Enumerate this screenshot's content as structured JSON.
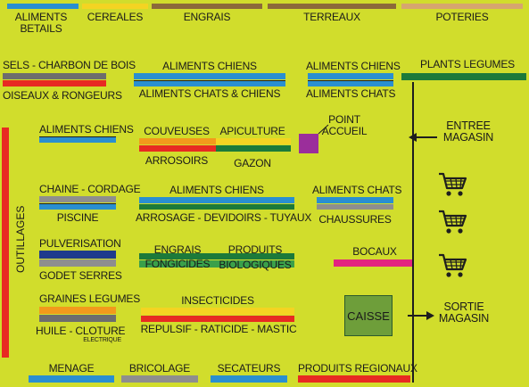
{
  "colors": {
    "background": "#d1dd2c",
    "blue": "#2a8fd0",
    "yellow": "#f4d422",
    "brown": "#8c6a3a",
    "tan": "#d6a66e",
    "grey": "#8e8e8e",
    "dark_grey": "#6d6d6d",
    "green": "#1c7a3a",
    "navy": "#1f3a8c",
    "orange": "#f29a1c",
    "red": "#e82a22",
    "magenta": "#e3237f",
    "purple": "#9b2e9b",
    "caisse_green": "#6e9e3a",
    "walls": "#1e1e1e"
  },
  "top_row": {
    "aliments_betails": "ALIMENTS\nBETAILS",
    "cereales": "CEREALES",
    "engrais": "ENGRAIS",
    "terreaux": "TERREAUX",
    "poteries": "POTERIES"
  },
  "row2": {
    "sels": "SELS - CHARBON DE BOIS",
    "oiseaux": "OISEAUX & RONGEURS",
    "aliments_chiens": "ALIMENTS CHIENS",
    "aliments_chats_chiens": "ALIMENTS CHATS & CHIENS",
    "aliments_chiens_2": "ALIMENTS CHIENS",
    "aliments_chats": "ALIMENTS CHATS",
    "plants_legumes": "PLANTS LEGUMES"
  },
  "row3": {
    "aliments_chiens": "ALIMENTS CHIENS",
    "couveuses": "COUVEUSES",
    "apiculture": "APICULTURE",
    "arrosoirs": "ARROSOIRS",
    "gazon": "GAZON",
    "point_accueil": "POINT\nACCUEIL",
    "entree_magasin": "ENTREE\nMAGASIN"
  },
  "row4": {
    "chaine_cordage": "CHAINE - CORDAGE",
    "piscine": "PISCINE",
    "aliments_chiens": "ALIMENTS CHIENS",
    "arrosage": "ARROSAGE - DEVIDOIRS - TUYAUX",
    "aliments_chats": "ALIMENTS CHATS",
    "chaussures": "CHAUSSURES"
  },
  "row5": {
    "pulverisation": "PULVERISATION",
    "godet_serres": "GODET SERRES",
    "engrais": "ENGRAIS",
    "fongicides": "FONGICIDES",
    "produits": "PRODUITS",
    "biologiques": "BIOLOGIQUES",
    "bocaux": "BOCAUX"
  },
  "row6": {
    "graines_legumes": "GRAINES LEGUMES",
    "huile_cloture": "HUILE - CLOTURE",
    "electrique": "ELECTRIQUE",
    "insecticides": "INSECTICIDES",
    "repulsif": "REPULSIF - RATICIDE - MASTIC",
    "caisse": "CAISSE",
    "sortie_magasin": "SORTIE\nMAGASIN"
  },
  "bottom_row": {
    "menage": "MENAGE",
    "bricolage": "BRICOLAGE",
    "secateurs": "SECATEURS",
    "produits_regionaux": "PRODUITS REGIONAUX"
  },
  "side": {
    "outillages": "OUTILLAGES"
  },
  "icons": {
    "cart": "shopping-cart-icon",
    "arrow": "arrow-left-icon",
    "arrow_right": "arrow-right-icon"
  }
}
